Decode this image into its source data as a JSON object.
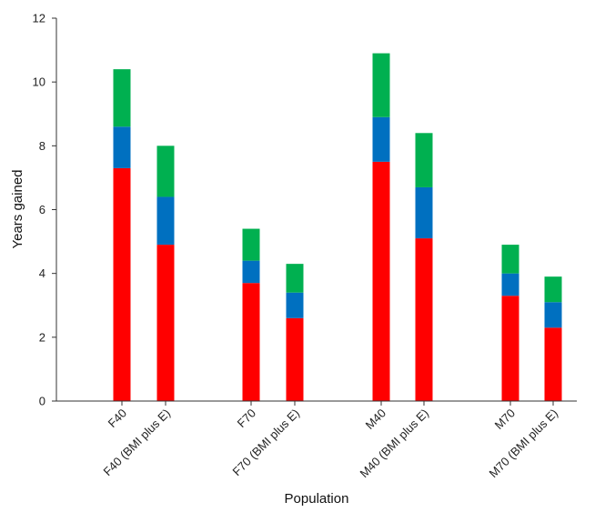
{
  "chart_data": {
    "type": "bar",
    "stacked": true,
    "title": "",
    "xlabel": "Population",
    "ylabel": "Years gained",
    "ylim": [
      0,
      12
    ],
    "yticks": [
      0,
      2,
      4,
      6,
      8,
      10,
      12
    ],
    "categories": [
      "F40",
      "F40 (BMI plus E)",
      "F70",
      "F70 (BMI plus E)",
      "M40",
      "M40 (BMI plus E)",
      "M70",
      "M70 (BMI plus E)"
    ],
    "groups": [
      [
        0,
        1
      ],
      [
        2,
        3
      ],
      [
        4,
        5
      ],
      [
        6,
        7
      ]
    ],
    "series": [
      {
        "name": "red segment",
        "color": "#ff0000",
        "values": [
          7.3,
          4.9,
          3.7,
          2.6,
          7.5,
          5.1,
          3.3,
          2.3
        ]
      },
      {
        "name": "blue segment",
        "color": "#0070c0",
        "values": [
          1.3,
          1.5,
          0.7,
          0.8,
          1.4,
          1.6,
          0.7,
          0.8
        ]
      },
      {
        "name": "green segment",
        "color": "#00b050",
        "values": [
          1.8,
          1.6,
          1.0,
          0.9,
          2.0,
          1.7,
          0.9,
          0.8
        ]
      }
    ],
    "legend": "none",
    "grid": false
  }
}
